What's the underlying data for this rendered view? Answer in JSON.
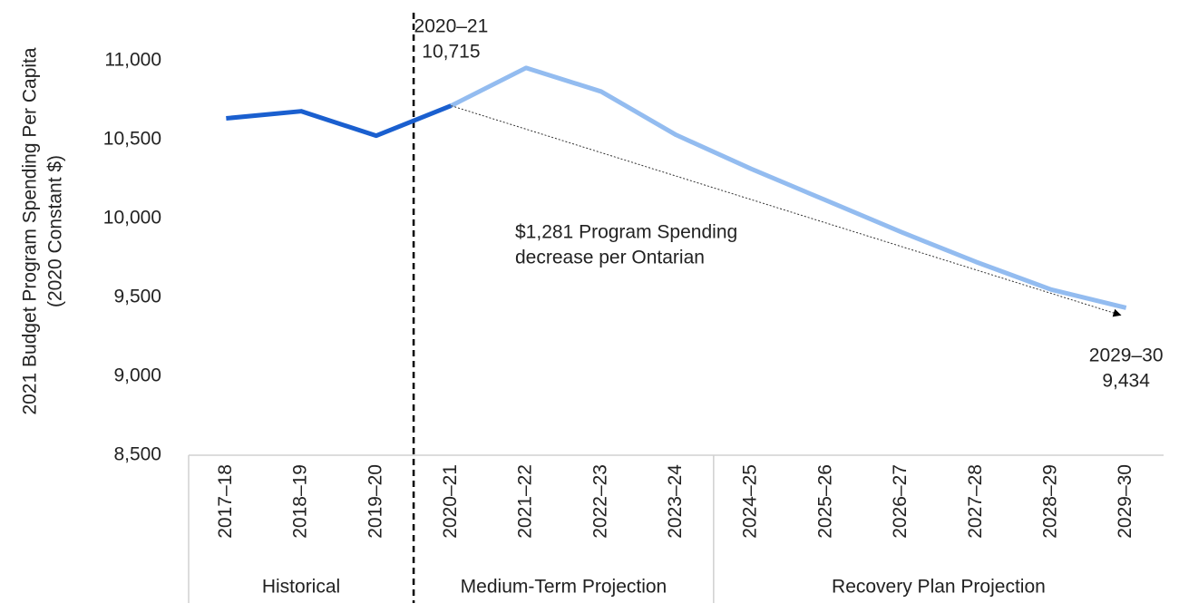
{
  "chart_data": {
    "type": "line",
    "y_label": [
      "2021 Budget Program Spending Per Capita",
      "(2020 Constant $)"
    ],
    "categories": [
      "2017–18",
      "2018–19",
      "2019–20",
      "2020–21",
      "2021–22",
      "2022–23",
      "2023–24",
      "2024–25",
      "2025–26",
      "2026–27",
      "2027–28",
      "2028–29",
      "2029–30"
    ],
    "category_groups": [
      "Historical",
      "Medium-Term Projection",
      "Recovery Plan Projection"
    ],
    "series": [
      {
        "name": "Historical",
        "color": "#1a5fcf",
        "values": [
          10635,
          10680,
          10525,
          10715,
          null,
          null,
          null,
          null,
          null,
          null,
          null,
          null,
          null
        ]
      },
      {
        "name": "Projection",
        "color": "#93bcf0",
        "values": [
          null,
          null,
          null,
          10715,
          10955,
          10805,
          10530,
          10315,
          10115,
          9915,
          9725,
          9550,
          9434
        ]
      }
    ],
    "ylim": [
      8500,
      11000
    ],
    "yticks": [
      {
        "value": 8500,
        "label": "8,500"
      },
      {
        "value": 9000,
        "label": "9,000"
      },
      {
        "value": 9500,
        "label": "9,500"
      },
      {
        "value": 10000,
        "label": "10,000"
      },
      {
        "value": 10500,
        "label": "10,500"
      },
      {
        "value": 11000,
        "label": "11,000"
      }
    ],
    "annotations": [
      {
        "lines": [
          "2020–21",
          "10,715"
        ]
      },
      {
        "lines": [
          "$1,281 Program Spending",
          "decrease per Ontarian"
        ]
      },
      {
        "lines": [
          "2029–30",
          "9,434"
        ]
      }
    ]
  }
}
